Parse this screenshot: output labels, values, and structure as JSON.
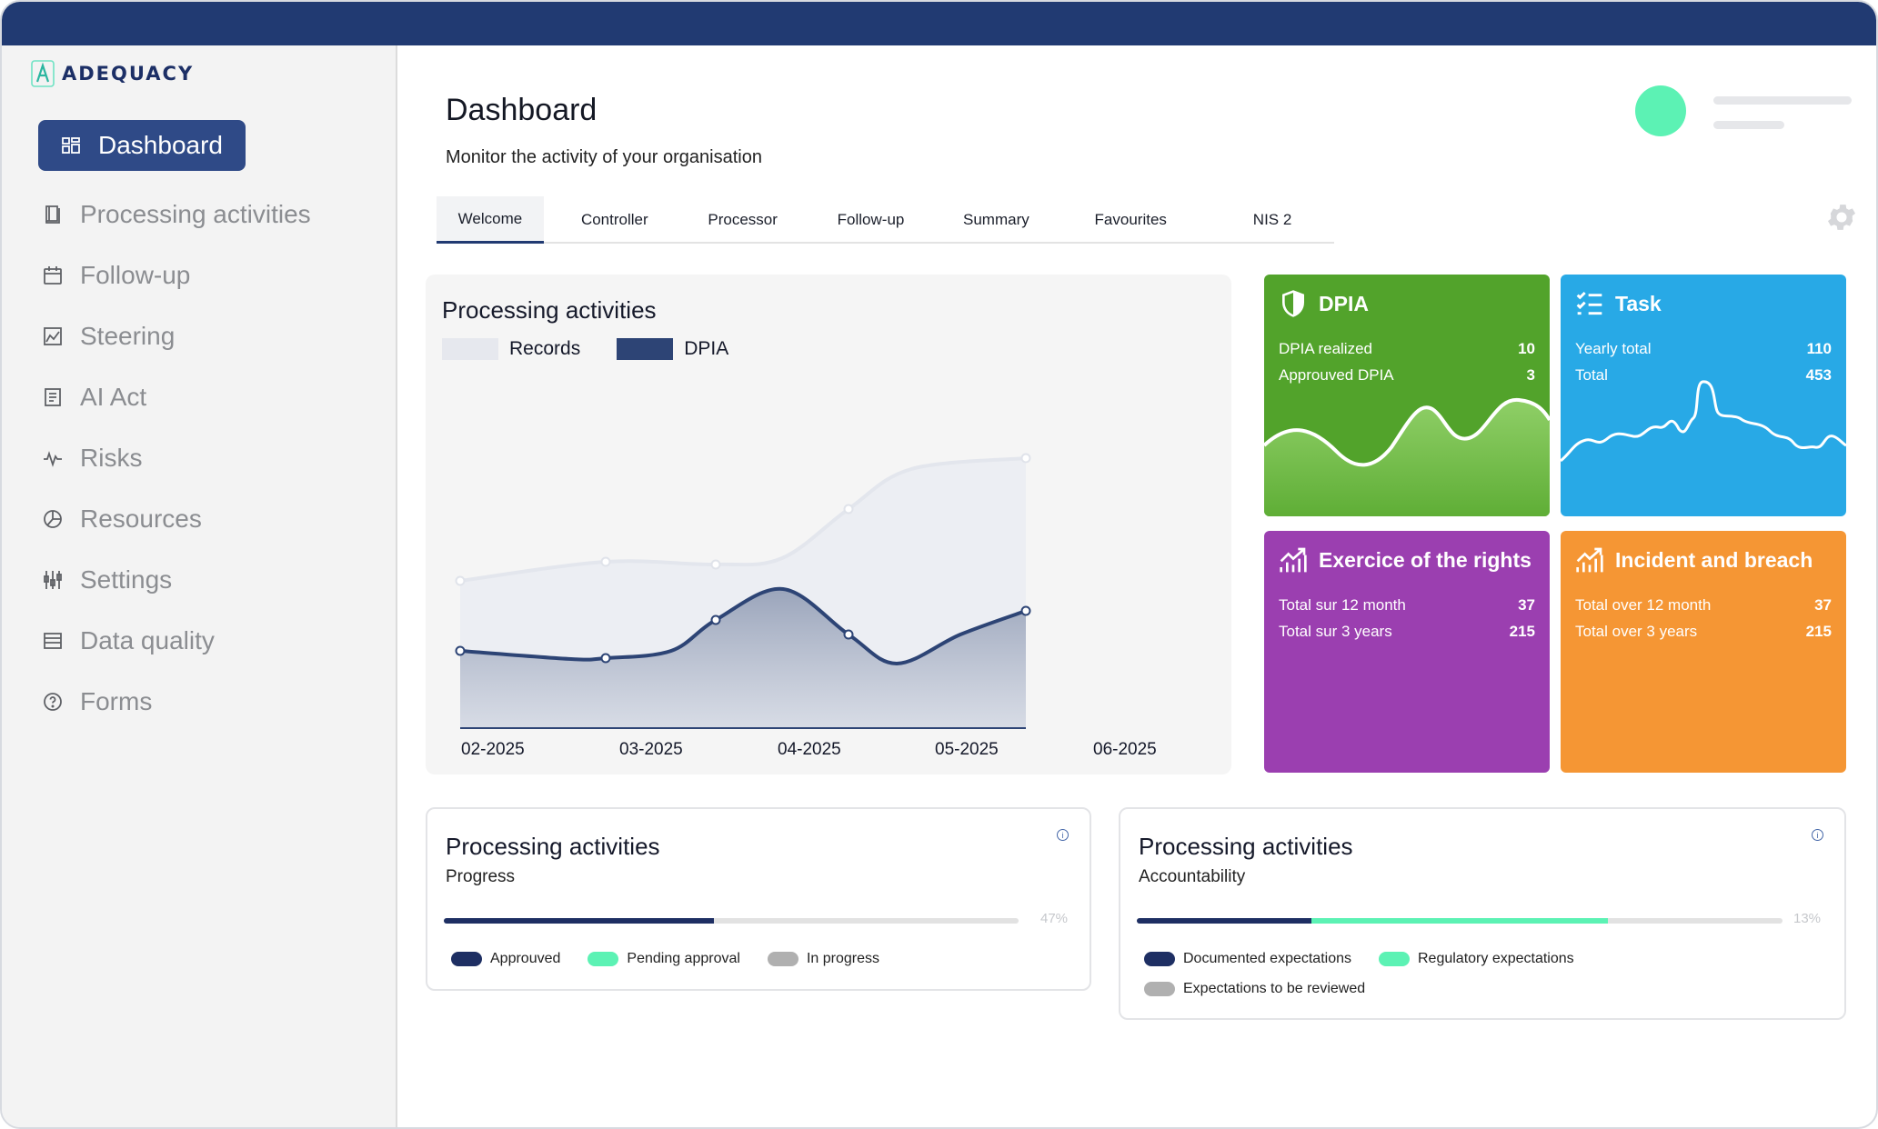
{
  "brand": {
    "name": "ADEQUACY"
  },
  "sidebar": {
    "items": [
      {
        "label": "Dashboard",
        "icon": "dashboard-icon"
      },
      {
        "label": "Processing activities",
        "icon": "book-icon"
      },
      {
        "label": "Follow-up",
        "icon": "calendar-icon"
      },
      {
        "label": "Steering",
        "icon": "chart-icon"
      },
      {
        "label": "AI Act",
        "icon": "document-icon"
      },
      {
        "label": "Risks",
        "icon": "pulse-icon"
      },
      {
        "label": "Resources",
        "icon": "pie-icon"
      },
      {
        "label": "Settings",
        "icon": "sliders-icon"
      },
      {
        "label": "Data quality",
        "icon": "list-icon"
      },
      {
        "label": "Forms",
        "icon": "help-icon"
      }
    ]
  },
  "header": {
    "title": "Dashboard",
    "subtitle": "Monitor the activity of your organisation"
  },
  "tabs": [
    "Welcome",
    "Controller",
    "Processor",
    "Follow-up",
    "Summary",
    "Favourites",
    "NIS 2"
  ],
  "chart_data": {
    "type": "area",
    "title": "Processing activities",
    "categories": [
      "02-2025",
      "03-2025",
      "04-2025",
      "05-2025",
      "06-2025"
    ],
    "legend_position": "top-left",
    "series": [
      {
        "name": "Records",
        "color": "#e6e8ee"
      },
      {
        "name": "DPIA",
        "color": "#2d4475"
      }
    ]
  },
  "tiles": {
    "dpia": {
      "title": "DPIA",
      "color": "#52a32b",
      "rows": [
        {
          "label": "DPIA realized",
          "value": "10"
        },
        {
          "label": "Approuved DPIA",
          "value": "3"
        }
      ]
    },
    "task": {
      "title": "Task",
      "color": "#28a9e6",
      "rows": [
        {
          "label": "Yearly total",
          "value": "110"
        },
        {
          "label": "Total",
          "value": "453"
        }
      ]
    },
    "rights": {
      "title": "Exercice of the rights",
      "color": "#9b3fb0",
      "rows": [
        {
          "label": "Total sur 12 month",
          "value": "37"
        },
        {
          "label": "Total sur 3 years",
          "value": "215"
        }
      ]
    },
    "incident": {
      "title": "Incident and breach",
      "color": "#f59634",
      "rows": [
        {
          "label": "Total over 12 month",
          "value": "37"
        },
        {
          "label": "Total over 3 years",
          "value": "215"
        }
      ]
    }
  },
  "progress_cards": [
    {
      "title": "Processing activities",
      "subtitle": "Progress",
      "percent_label": "47%",
      "segments": [
        {
          "fraction": 0.47,
          "color": "#1e2f63"
        }
      ],
      "legend": [
        {
          "label": "Approuved",
          "color": "#1e2f63"
        },
        {
          "label": "Pending approval",
          "color": "#5cf2b4"
        },
        {
          "label": "In progress",
          "color": "#b0b0b0"
        }
      ]
    },
    {
      "title": "Processing activities",
      "subtitle": "Accountability",
      "percent_label": "13%",
      "segments": [
        {
          "fraction": 0.27,
          "color": "#1e2f63"
        },
        {
          "fraction": 0.46,
          "color": "#5cf2b4"
        }
      ],
      "legend": [
        {
          "label": "Documented expectations",
          "color": "#1e2f63"
        },
        {
          "label": "Regulatory expectations",
          "color": "#5cf2b4"
        },
        {
          "label": "Expectations to be reviewed",
          "color": "#b0b0b0"
        }
      ]
    }
  ]
}
